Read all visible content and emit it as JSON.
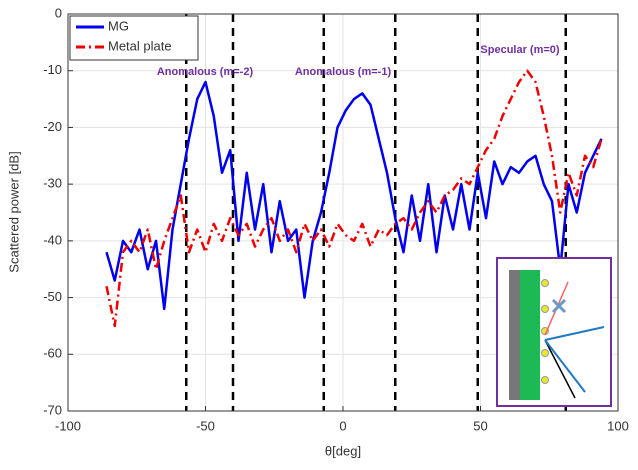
{
  "chart_data": {
    "type": "line",
    "xlabel": "θ[deg]",
    "ylabel": "Scattered power [dB]",
    "x": [
      -86,
      -83,
      -80,
      -77,
      -74,
      -71,
      -68,
      -65,
      -62,
      -59,
      -56,
      -53,
      -50,
      -47,
      -44,
      -41,
      -38,
      -35,
      -32,
      -29,
      -26,
      -23,
      -20,
      -17,
      -14,
      -11,
      -8,
      -5,
      -2,
      1,
      4,
      7,
      10,
      13,
      16,
      19,
      22,
      25,
      28,
      31,
      34,
      37,
      40,
      43,
      46,
      49,
      52,
      55,
      58,
      61,
      64,
      67,
      70,
      73,
      76,
      79,
      82,
      85,
      88,
      91,
      94
    ],
    "series": [
      {
        "name": "MG",
        "color": "#0000ee",
        "dash": "solid",
        "values": [
          -42,
          -47,
          -40,
          -42,
          -38,
          -45,
          -40,
          -52,
          -38,
          -30,
          -22,
          -15,
          -12,
          -18,
          -28,
          -24,
          -40,
          -28,
          -38,
          -30,
          -42,
          -33,
          -40,
          -38,
          -50,
          -40,
          -35,
          -28,
          -20,
          -17,
          -15,
          -14,
          -16,
          -22,
          -28,
          -36,
          -42,
          -32,
          -40,
          -30,
          -42,
          -32,
          -38,
          -30,
          -38,
          -28,
          -36,
          -26,
          -30,
          -27,
          -28,
          -26,
          -25,
          -30,
          -33,
          -45,
          -30,
          -35,
          -28,
          -25,
          -22
        ]
      },
      {
        "name": "Metal plate",
        "color": "#ee0000",
        "dash": "dashdot",
        "values": [
          -48,
          -55,
          -42,
          -40,
          -42,
          -38,
          -45,
          -40,
          -36,
          -32,
          -42,
          -38,
          -42,
          -37,
          -40,
          -36,
          -39,
          -37,
          -41,
          -38,
          -36,
          -40,
          -38,
          -42,
          -37,
          -40,
          -38,
          -41,
          -37,
          -39,
          -40,
          -37,
          -41,
          -38,
          -39,
          -37,
          -36,
          -38,
          -35,
          -33,
          -35,
          -32,
          -31,
          -29,
          -30,
          -27,
          -24,
          -22,
          -18,
          -15,
          -12,
          -10,
          -12,
          -18,
          -25,
          -35,
          -28,
          -32,
          -25,
          -27,
          -22
        ]
      }
    ],
    "vlines": [
      -57,
      -40,
      -7,
      19,
      49,
      81
    ],
    "annotations": [
      "Anomalous (m=-2)",
      "Anomalous (m=-1)",
      "Specular (m=0)"
    ],
    "xlim": [
      -100,
      100
    ],
    "xticks": [
      -100,
      -50,
      0,
      50,
      100
    ],
    "ylim": [
      -70,
      0
    ],
    "yticks": [
      -70,
      -60,
      -50,
      -40,
      -30,
      -20,
      -10,
      0
    ],
    "grid": true,
    "legend": "top-left"
  }
}
